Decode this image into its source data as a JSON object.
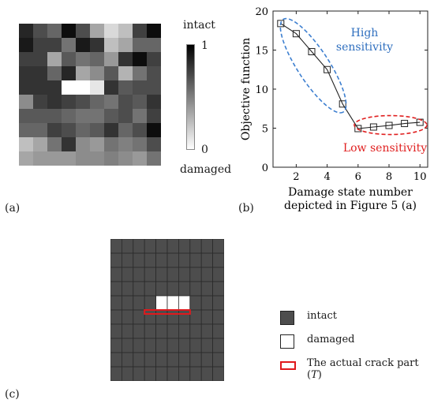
{
  "panel_labels": {
    "a": "(a)",
    "b": "(b)",
    "c": "(c)"
  },
  "colorbar": {
    "top_text": "intact",
    "bottom_text": "damaged",
    "max_tick": "1",
    "min_tick": "0",
    "gradient_top": "#000000",
    "gradient_bottom": "#ffffff"
  },
  "panel_c": {
    "intact_color": "#4d4d4d",
    "damaged_color": "#ffffff",
    "crack_color": "#e0191d",
    "legend": {
      "intact": "intact",
      "damaged": "damaged",
      "crack_prefix": "The actual crack part (",
      "crack_var": "T",
      "crack_suffix": ")"
    }
  },
  "chart_data": [
    {
      "type": "heatmap",
      "colormap": "gray (0 = damaged/white, 1 = intact/black)",
      "rows": 10,
      "cols": 10,
      "values": [
        [
          0.85,
          0.7,
          0.6,
          0.95,
          0.7,
          0.35,
          0.15,
          0.25,
          0.75,
          0.95
        ],
        [
          0.9,
          0.75,
          0.75,
          0.55,
          0.9,
          0.8,
          0.25,
          0.35,
          0.6,
          0.6
        ],
        [
          0.75,
          0.75,
          0.35,
          0.65,
          0.55,
          0.6,
          0.4,
          0.8,
          0.95,
          0.75
        ],
        [
          0.8,
          0.8,
          0.6,
          0.85,
          0.35,
          0.45,
          0.65,
          0.3,
          0.55,
          0.7
        ],
        [
          0.8,
          0.8,
          0.8,
          0.0,
          0.0,
          0.1,
          0.8,
          0.65,
          0.7,
          0.7
        ],
        [
          0.45,
          0.75,
          0.8,
          0.75,
          0.7,
          0.6,
          0.55,
          0.7,
          0.65,
          0.8
        ],
        [
          0.65,
          0.65,
          0.65,
          0.6,
          0.55,
          0.55,
          0.65,
          0.7,
          0.55,
          0.75
        ],
        [
          0.6,
          0.6,
          0.75,
          0.7,
          0.6,
          0.65,
          0.8,
          0.6,
          0.7,
          0.95
        ],
        [
          0.25,
          0.35,
          0.55,
          0.8,
          0.45,
          0.4,
          0.55,
          0.5,
          0.55,
          0.7
        ],
        [
          0.35,
          0.4,
          0.4,
          0.4,
          0.45,
          0.45,
          0.5,
          0.45,
          0.4,
          0.55
        ]
      ]
    },
    {
      "type": "line",
      "x": [
        1,
        2,
        3,
        4,
        5,
        6,
        7,
        8,
        9,
        10
      ],
      "y": [
        18.4,
        17.1,
        14.8,
        12.5,
        8.1,
        4.95,
        5.15,
        5.35,
        5.6,
        5.75
      ],
      "marker": "square",
      "xlabel_lines": [
        "Damage state number",
        "depicted in Figure 5 (a)"
      ],
      "ylabel": "Objective function",
      "xlim": [
        0.5,
        10.5
      ],
      "ylim": [
        0,
        20
      ],
      "xticks": [
        2,
        4,
        6,
        8,
        10
      ],
      "yticks": [
        0,
        5,
        10,
        15,
        20
      ],
      "annotations": [
        {
          "text_lines": [
            "High",
            "sensitivity"
          ],
          "color": "#2f6fbf",
          "ellipse_color": "#3d7fd0",
          "covers_x": [
            1,
            5
          ]
        },
        {
          "text_lines": [
            "Low sensitivity"
          ],
          "color": "#e02020",
          "ellipse_color": "#e02020",
          "covers_x": [
            6,
            10
          ]
        }
      ]
    },
    {
      "type": "heatmap",
      "rows": 10,
      "cols": 10,
      "damaged_cells": [
        [
          4,
          4
        ],
        [
          4,
          5
        ],
        [
          4,
          6
        ]
      ],
      "crack_cells": [
        [
          5,
          3
        ],
        [
          5,
          4
        ],
        [
          5,
          5
        ],
        [
          5,
          6
        ]
      ]
    }
  ]
}
